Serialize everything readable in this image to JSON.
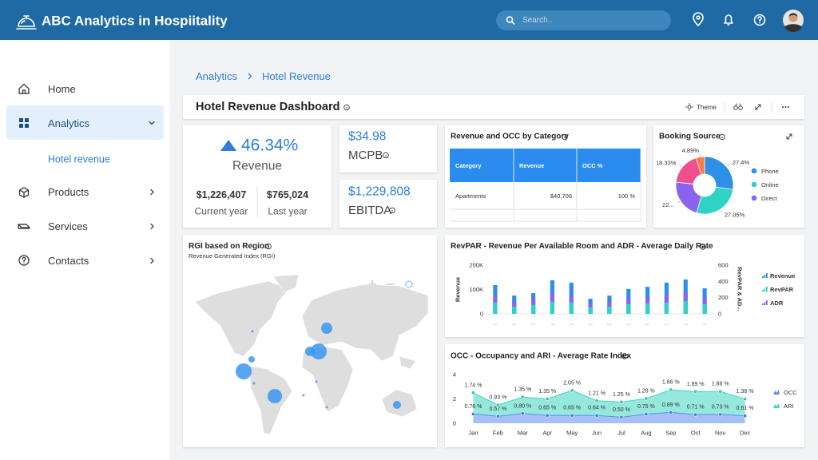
{
  "header": {
    "title": "ABC Analytics in Hospiitality",
    "search_placeholder": "Search.."
  },
  "sidebar": {
    "items": [
      "Home",
      "Analytics",
      "Hotel revenue",
      "Products",
      "Services",
      "Contacts"
    ]
  },
  "breadcrumb": [
    "Analytics",
    "Hotel Revenue"
  ],
  "dashboard": {
    "title": "Hotel Revenue Dashboard",
    "theme_button": "Theme"
  },
  "revenue_kpi": {
    "value": "46.34%",
    "label": "Revenue",
    "current_value": "$1,226,407",
    "current_label": "Current year",
    "last_value": "$765,024",
    "last_label": "Last year"
  },
  "mcpb_kpi": {
    "value": "$34.98",
    "label": "MCPB"
  },
  "ebitda_kpi": {
    "value": "$1,229,808",
    "label": "EBITDA"
  },
  "category_table": {
    "title": "Revenue and OCC by Category",
    "columns": [
      "Category",
      "Revenue",
      "OCC %"
    ],
    "rows": [
      [
        "Apartments",
        "$40,706",
        "100 %"
      ]
    ]
  },
  "map": {
    "title": "RGI based on Region",
    "subtitle": "Revenue Generated Index (RGI)"
  },
  "chart_data": [
    {
      "type": "pie",
      "title": "Booking Source",
      "categories": [
        "Phone",
        "Online",
        "Direct",
        null,
        null
      ],
      "values": [
        27.4,
        27.05,
        22.33,
        18.33,
        4.89
      ],
      "value_labels": [
        "27.4%",
        "27.05%",
        "22...",
        "18.33%",
        "4.89%"
      ],
      "colors": [
        "#2e8fe6",
        "#2fd3c3",
        "#8a63ee",
        "#ee4f8f",
        "#ff7a45"
      ]
    },
    {
      "type": "bar",
      "title": "RevPAR - Revenue Per Available Room and ADR - Average Daily Rate",
      "categories": [
        "...",
        "...",
        "...",
        "...",
        "...",
        "...",
        "...",
        "...",
        "...",
        "...",
        "...",
        "..."
      ],
      "series": [
        {
          "name": "Revenue",
          "color": "#2e8fe6",
          "values": [
            118000,
            75000,
            85000,
            138000,
            128000,
            62000,
            75000,
            102000,
            111000,
            128000,
            141000,
            105000
          ]
        },
        {
          "name": "RevPAR",
          "color": "#2fd3c3",
          "axis": "y2",
          "values": [
            140,
            90,
            110,
            150,
            140,
            80,
            90,
            120,
            130,
            140,
            160,
            120
          ]
        },
        {
          "name": "ADR",
          "color": "#8a63ee",
          "axis": "y2",
          "values": [
            220,
            150,
            200,
            250,
            230,
            130,
            150,
            190,
            210,
            230,
            260,
            200
          ]
        }
      ],
      "ylabel": "Revenue",
      "y2label": "RevPAR & AD...",
      "ylim": [
        0,
        200000
      ],
      "yticks": [
        0,
        {
          "value": 100000,
          "label": "100K"
        },
        {
          "value": 200000,
          "label": "200K"
        }
      ],
      "y2lim": [
        0,
        600
      ],
      "y2ticks": [
        0,
        200,
        400,
        600
      ]
    },
    {
      "type": "area",
      "title": "OCC - Occupancy and ARI - Average Rate Index",
      "stacked": true,
      "categories": [
        "Jan",
        "Feb",
        "Mar",
        "Apr",
        "May",
        "Jun",
        "Jul",
        "Aug",
        "Sep",
        "Oct",
        "Nov",
        "Dec"
      ],
      "series": [
        {
          "name": "OCC",
          "color": "#5b8def",
          "values": [
            0.76,
            0.57,
            0.8,
            0.65,
            0.65,
            0.64,
            0.5,
            0.75,
            0.89,
            0.71,
            0.73,
            0.61
          ],
          "value_labels": [
            "0.76 %",
            "0.57 %",
            "0.80 %",
            "0.65 %",
            "0.65 %",
            "0.64 %",
            "0.50 %",
            "0.75 %",
            "0.89 %",
            "0.71 %",
            "0.73 %",
            "0.61 %"
          ]
        },
        {
          "name": "ARI",
          "color": "#3dd6c0",
          "values": [
            1.74,
            0.93,
            1.35,
            1.35,
            2.05,
            1.21,
            1.25,
            1.28,
            1.86,
            1.89,
            1.88,
            1.38
          ],
          "value_labels": [
            "1.74 %",
            "0.93 %",
            "1.35 %",
            "1.35 %",
            "2.05 %",
            "1.21 %",
            "1.25 %",
            "1.28 %",
            "1.86 %",
            "1.89 %",
            "1.88 %",
            "1.38 %"
          ]
        }
      ],
      "ylim": [
        0,
        4
      ],
      "yticks": [
        0,
        2,
        4
      ]
    }
  ]
}
